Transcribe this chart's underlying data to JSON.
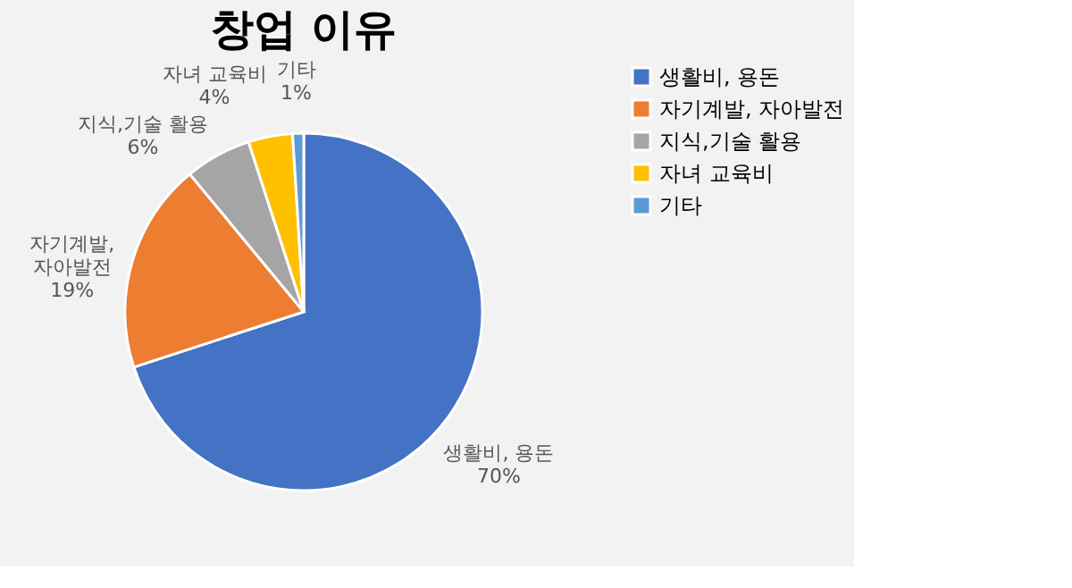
{
  "chart_data": {
    "type": "pie",
    "title": "창업 이유",
    "categories": [
      "생활비, 용돈",
      "자기계발, 자아발전",
      "지식,기술 활용",
      "자녀 교육비",
      "기타"
    ],
    "values": [
      70,
      19,
      6,
      4,
      1
    ],
    "colors": [
      "#4472c4",
      "#ed7d31",
      "#a5a5a5",
      "#ffc000",
      "#5b9bd5"
    ],
    "data_labels": true,
    "value_labels": [
      "70%",
      "19%",
      "6%",
      "4%",
      "1%"
    ],
    "legend": "right"
  }
}
